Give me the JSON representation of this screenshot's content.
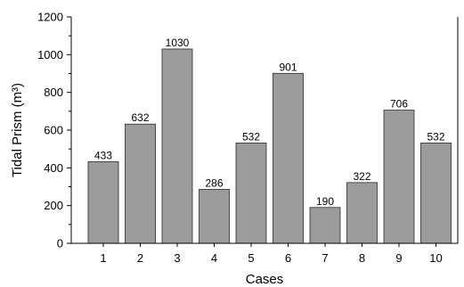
{
  "chart_data": {
    "type": "bar",
    "categories": [
      "1",
      "2",
      "3",
      "4",
      "5",
      "6",
      "7",
      "8",
      "9",
      "10"
    ],
    "values": [
      433,
      632,
      1030,
      286,
      532,
      901,
      190,
      322,
      706,
      532
    ],
    "data_labels": [
      "433",
      "632",
      "1030",
      "286",
      "532",
      "901",
      "190",
      "322",
      "706",
      "532"
    ],
    "xlabel": "Cases",
    "ylabel": "Tidal Prism (m³)",
    "ylim": [
      0,
      1200
    ],
    "yticks": [
      0,
      200,
      400,
      600,
      800,
      1000,
      1200
    ],
    "ytick_labels": [
      "0",
      "200",
      "400",
      "600",
      "800",
      "1000",
      "1200"
    ],
    "grid": false,
    "bar_color": "#9b9b9b"
  }
}
